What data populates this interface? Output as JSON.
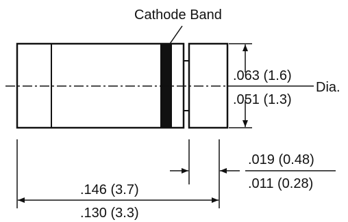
{
  "labels": {
    "cathode_band": "Cathode Band",
    "dia_max": ".063 (1.6)",
    "dia_min": ".051 (1.3)",
    "dia_suffix": "Dia.",
    "lead_max": ".019 (0.48)",
    "lead_min": ".011 (0.28)",
    "len_max": ".146 (3.7)",
    "len_min": ".130 (3.3)"
  },
  "colors": {
    "ink": "#111111",
    "band": "#111111",
    "background": "#ffffff"
  }
}
